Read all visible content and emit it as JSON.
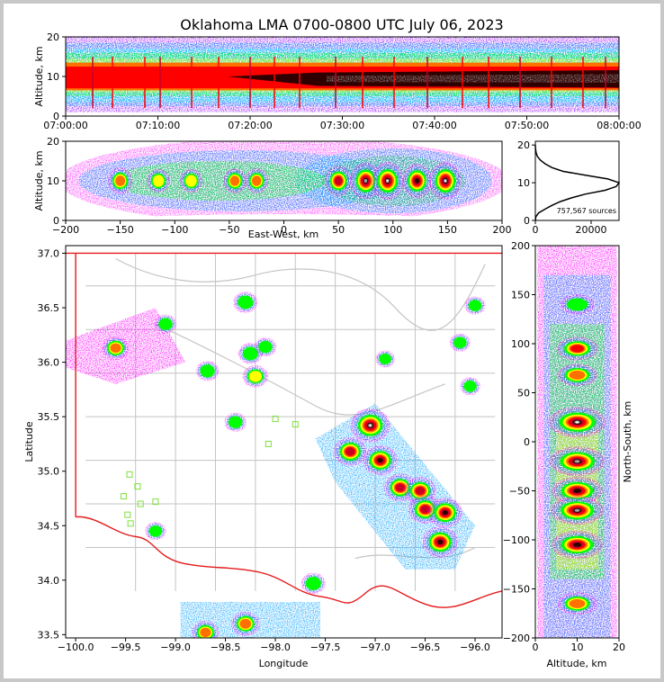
{
  "chart_data": {
    "type": "heatmap",
    "title": "Oklahoma LMA 0700-0800 UTC July 06, 2023",
    "colormap": [
      "#ff00ff",
      "#9000ff",
      "#0000ff",
      "#00a0ff",
      "#00ffff",
      "#00c060",
      "#00ff00",
      "#c0ff00",
      "#ffff00",
      "#ffc000",
      "#ff7000",
      "#ff0000",
      "#c80028",
      "#300000",
      "#a0a0a0",
      "#ffffff"
    ],
    "panels": {
      "time_altitude": {
        "xlabel": "",
        "ylabel": "Altitude, km",
        "ylim": [
          0,
          20
        ],
        "xticks": [
          "07:00:00",
          "07:10:00",
          "07:20:00",
          "07:30:00",
          "07:40:00",
          "07:50:00",
          "08:00:00"
        ],
        "yticks": [
          "0",
          "10",
          "20"
        ]
      },
      "ew_altitude": {
        "xlabel": "East-West, km",
        "ylabel": "Altitude, km",
        "xlim": [
          -200,
          200
        ],
        "ylim": [
          0,
          20
        ],
        "xticks": [
          "−200",
          "−150",
          "−100",
          "−50",
          "0",
          "50",
          "100",
          "150",
          "200"
        ],
        "yticks": [
          "0",
          "10",
          "20"
        ],
        "core_x_km": [
          -150,
          -115,
          -85,
          -45,
          -25,
          50,
          75,
          95,
          122,
          148
        ],
        "core_intensity": [
          0.55,
          0.45,
          0.45,
          0.5,
          0.5,
          0.7,
          0.95,
          1.0,
          0.85,
          1.0
        ]
      },
      "altitude_histogram": {
        "annotation": "757,567 sources",
        "xlim": [
          0,
          30000
        ],
        "ylim": [
          0,
          21
        ],
        "xticks": [
          "0",
          "20000"
        ],
        "yticks": [
          "0",
          "10",
          "20"
        ],
        "profile_alt_km": [
          0,
          1,
          2,
          3,
          4,
          5,
          6,
          7,
          8,
          9,
          10,
          11,
          12,
          13,
          14,
          15,
          16,
          17,
          18,
          19,
          20
        ],
        "profile_counts": [
          0,
          200,
          1200,
          3500,
          6000,
          9000,
          13000,
          18000,
          25000,
          29000,
          30000,
          26000,
          18000,
          10000,
          6000,
          3500,
          1800,
          700,
          250,
          60,
          0
        ]
      },
      "plan_view": {
        "xlabel": "Longitude",
        "ylabel": "Latitude",
        "xlim": [
          -100.1,
          -95.73
        ],
        "ylim": [
          33.47,
          37.07
        ],
        "xticks": [
          "−100.0",
          "−99.5",
          "−99.0",
          "−98.5",
          "−98.0",
          "−97.5",
          "−97.0",
          "−96.5",
          "−96.0"
        ],
        "yticks": [
          "33.5",
          "34.0",
          "34.5",
          "35.0",
          "35.5",
          "36.0",
          "36.5",
          "37.0"
        ],
        "cells": [
          {
            "lon": -99.6,
            "lat": 36.13,
            "intensity": 0.5
          },
          {
            "lon": -99.1,
            "lat": 36.35,
            "intensity": 0.3
          },
          {
            "lon": -98.68,
            "lat": 35.92,
            "intensity": 0.35
          },
          {
            "lon": -98.3,
            "lat": 36.55,
            "intensity": 0.4
          },
          {
            "lon": -98.25,
            "lat": 36.08,
            "intensity": 0.4
          },
          {
            "lon": -98.1,
            "lat": 36.14,
            "intensity": 0.3
          },
          {
            "lon": -98.2,
            "lat": 35.87,
            "intensity": 0.45
          },
          {
            "lon": -98.4,
            "lat": 35.45,
            "intensity": 0.3
          },
          {
            "lon": -97.05,
            "lat": 35.42,
            "intensity": 1.0
          },
          {
            "lon": -97.25,
            "lat": 35.18,
            "intensity": 0.75
          },
          {
            "lon": -96.95,
            "lat": 35.1,
            "intensity": 0.8
          },
          {
            "lon": -96.75,
            "lat": 34.85,
            "intensity": 0.7
          },
          {
            "lon": -96.55,
            "lat": 34.82,
            "intensity": 0.7
          },
          {
            "lon": -96.5,
            "lat": 34.65,
            "intensity": 0.75
          },
          {
            "lon": -96.3,
            "lat": 34.62,
            "intensity": 0.8
          },
          {
            "lon": -96.35,
            "lat": 34.35,
            "intensity": 0.85
          },
          {
            "lon": -96.05,
            "lat": 35.78,
            "intensity": 0.25
          },
          {
            "lon": -96.0,
            "lat": 36.52,
            "intensity": 0.25
          },
          {
            "lon": -96.15,
            "lat": 36.18,
            "intensity": 0.25
          },
          {
            "lon": -96.9,
            "lat": 36.03,
            "intensity": 0.2
          },
          {
            "lon": -97.62,
            "lat": 33.97,
            "intensity": 0.4
          },
          {
            "lon": -98.3,
            "lat": 33.6,
            "intensity": 0.55
          },
          {
            "lon": -98.7,
            "lat": 33.52,
            "intensity": 0.5
          },
          {
            "lon": -99.2,
            "lat": 34.45,
            "intensity": 0.25
          }
        ],
        "stations": [
          {
            "lon": -99.46,
            "lat": 34.97
          },
          {
            "lon": -99.38,
            "lat": 34.86
          },
          {
            "lon": -99.52,
            "lat": 34.77
          },
          {
            "lon": -99.2,
            "lat": 34.72
          },
          {
            "lon": -99.35,
            "lat": 34.7
          },
          {
            "lon": -99.48,
            "lat": 34.6
          },
          {
            "lon": -99.45,
            "lat": 34.52
          },
          {
            "lon": -98.0,
            "lat": 35.48
          },
          {
            "lon": -97.8,
            "lat": 35.43
          },
          {
            "lon": -98.07,
            "lat": 35.25
          }
        ]
      },
      "ns_altitude": {
        "xlabel": "Altitude, km",
        "ylabel": "North-South, km",
        "xlim": [
          0,
          20
        ],
        "ylim": [
          -200,
          200
        ],
        "xticks": [
          "0",
          "10",
          "20"
        ],
        "yticks": [
          "−200",
          "−150",
          "−100",
          "−50",
          "0",
          "50",
          "100",
          "150",
          "200"
        ],
        "core_y_km": [
          140,
          95,
          68,
          20,
          -20,
          -50,
          -70,
          -105,
          -165
        ],
        "core_intensity": [
          0.4,
          0.6,
          0.55,
          1.0,
          0.95,
          0.85,
          0.9,
          0.85,
          0.55
        ]
      }
    }
  }
}
